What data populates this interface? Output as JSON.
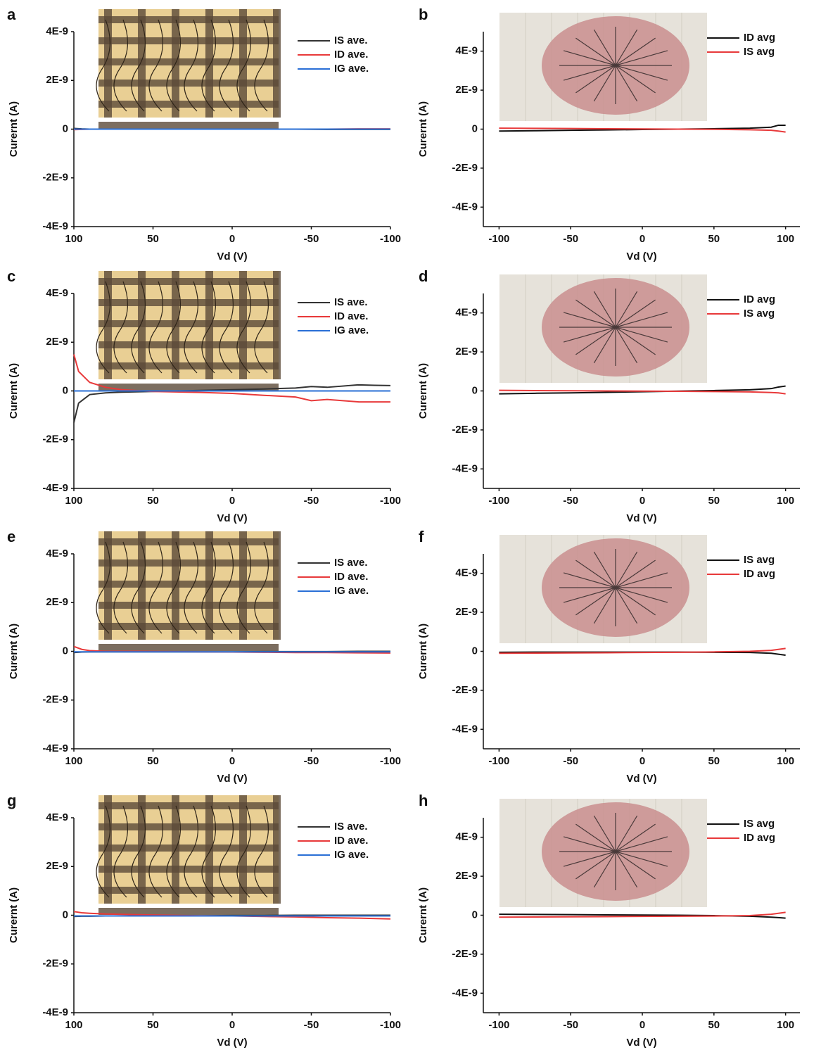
{
  "chart_data": [
    {
      "type": "line",
      "panel": "a",
      "xlabel": "Vd (V)",
      "ylabel": "Curernt (A)",
      "legend": "upper right",
      "xlim": [
        100,
        -100
      ],
      "xticks": [
        100,
        50,
        0,
        -50,
        -100
      ],
      "ylim": [
        -4e-09,
        4e-09
      ],
      "yticks": [
        {
          "value": 4e-09,
          "label": "4E-9"
        },
        {
          "value": 2e-09,
          "label": "2E-9"
        },
        0,
        {
          "value": -2e-09,
          "label": "-2E-9"
        },
        {
          "value": -4e-09,
          "label": "-4E-9"
        }
      ],
      "x": [
        100,
        95,
        90,
        80,
        60,
        40,
        20,
        0,
        -20,
        -40,
        -60,
        -80,
        -100
      ],
      "series": [
        {
          "name": "IS ave.",
          "color": "#333333",
          "values": [
            3e-11,
            1e-11,
            0,
            0,
            0,
            0,
            0,
            0,
            0,
            0,
            -1e-11,
            -1e-11,
            -1e-11
          ]
        },
        {
          "name": "ID ave.",
          "color": "#e8393a",
          "values": [
            -2e-11,
            -1e-11,
            0,
            0,
            0,
            0,
            0,
            0,
            0,
            0,
            0,
            1e-11,
            1e-11
          ]
        },
        {
          "name": "IG ave.",
          "color": "#2a6fd6",
          "values": [
            0,
            0,
            0,
            0,
            0,
            0,
            0,
            0,
            0,
            0,
            0,
            0,
            0
          ]
        }
      ]
    },
    {
      "type": "line",
      "panel": "b",
      "xlabel": "Vd (V)",
      "ylabel": "Curernt (A)",
      "legend": "upper right",
      "xlim": [
        -111,
        110
      ],
      "xticks": [
        -100,
        -50,
        0,
        50,
        100
      ],
      "ylim": [
        -5e-09,
        5e-09
      ],
      "yticks": [
        {
          "value": 4e-09,
          "label": "4E-9"
        },
        {
          "value": 2e-09,
          "label": "2E-9"
        },
        0,
        {
          "value": -2e-09,
          "label": "-2E-9"
        },
        {
          "value": -4e-09,
          "label": "-4E-9"
        }
      ],
      "x": [
        -100,
        -75,
        -50,
        -25,
        0,
        25,
        50,
        75,
        90,
        95,
        100
      ],
      "series": [
        {
          "name": "ID avg",
          "color": "#111111",
          "values": [
            -1e-10,
            -8e-11,
            -6e-11,
            -4e-11,
            -2e-11,
            0,
            2e-11,
            5e-11,
            1e-10,
            2e-10,
            2e-10
          ]
        },
        {
          "name": "IS avg",
          "color": "#e8393a",
          "values": [
            5e-11,
            4e-11,
            3e-11,
            2e-11,
            1e-11,
            0,
            -1e-11,
            -3e-11,
            -6e-11,
            -1e-10,
            -1.5e-10
          ]
        }
      ]
    },
    {
      "type": "line",
      "panel": "c",
      "xlabel": "Vd (V)",
      "ylabel": "Curernt (A)",
      "legend": "upper right",
      "xlim": [
        100,
        -100
      ],
      "xticks": [
        100,
        50,
        0,
        -50,
        -100
      ],
      "ylim": [
        -4e-09,
        4e-09
      ],
      "yticks": [
        {
          "value": 4e-09,
          "label": "4E-9"
        },
        {
          "value": 2e-09,
          "label": "2E-9"
        },
        0,
        {
          "value": -2e-09,
          "label": "-2E-9"
        },
        {
          "value": -4e-09,
          "label": "-4E-9"
        }
      ],
      "x": [
        100,
        97,
        90,
        80,
        70,
        50,
        20,
        0,
        -20,
        -40,
        -50,
        -60,
        -80,
        -90,
        -100
      ],
      "series": [
        {
          "name": "IS ave.",
          "color": "#333333",
          "values": [
            -1.3e-09,
            -5e-10,
            -1.5e-10,
            -8e-11,
            -5e-11,
            -2e-11,
            2e-11,
            5e-11,
            8e-11,
            1.2e-10,
            1.8e-10,
            1.5e-10,
            2.5e-10,
            2.3e-10,
            2.2e-10
          ]
        },
        {
          "name": "ID ave.",
          "color": "#e8393a",
          "values": [
            1.5e-09,
            8e-10,
            3.5e-10,
            1.5e-10,
            5e-11,
            -2e-11,
            -6e-11,
            -1e-10,
            -1.8e-10,
            -2.5e-10,
            -4e-10,
            -3.5e-10,
            -4.5e-10,
            -4.5e-10,
            -4.5e-10
          ]
        },
        {
          "name": "IG ave.",
          "color": "#2a6fd6",
          "values": [
            0,
            0,
            0,
            0,
            0,
            0,
            0,
            0,
            0,
            0,
            0,
            0,
            0,
            0,
            0
          ]
        }
      ]
    },
    {
      "type": "line",
      "panel": "d",
      "xlabel": "Vd (V)",
      "ylabel": "Curernt (A)",
      "legend": "upper right",
      "xlim": [
        -111,
        110
      ],
      "xticks": [
        -100,
        -50,
        0,
        50,
        100
      ],
      "ylim": [
        -5e-09,
        5e-09
      ],
      "yticks": [
        {
          "value": 4e-09,
          "label": "4E-9"
        },
        {
          "value": 2e-09,
          "label": "2E-9"
        },
        0,
        {
          "value": -2e-09,
          "label": "-2E-9"
        },
        {
          "value": -4e-09,
          "label": "-4E-9"
        }
      ],
      "x": [
        -100,
        -75,
        -50,
        -25,
        0,
        25,
        50,
        75,
        90,
        95,
        100
      ],
      "series": [
        {
          "name": "ID avg",
          "color": "#111111",
          "values": [
            -1.5e-10,
            -1.2e-10,
            -1e-10,
            -7e-11,
            -4e-11,
            -1e-11,
            2e-11,
            6e-11,
            1.2e-10,
            2e-10,
            2.5e-10
          ]
        },
        {
          "name": "IS avg",
          "color": "#e8393a",
          "values": [
            3e-11,
            2e-11,
            1e-11,
            0,
            -1e-11,
            -2e-11,
            -3e-11,
            -5e-11,
            -8e-11,
            -1e-10,
            -1.5e-10
          ]
        }
      ]
    },
    {
      "type": "line",
      "panel": "e",
      "xlabel": "Vd (V)",
      "ylabel": "Curernt (A)",
      "legend": "upper right",
      "xlim": [
        100,
        -100
      ],
      "xticks": [
        100,
        50,
        0,
        -50,
        -100
      ],
      "ylim": [
        -4e-09,
        4e-09
      ],
      "yticks": [
        {
          "value": 4e-09,
          "label": "4E-9"
        },
        {
          "value": 2e-09,
          "label": "2E-9"
        },
        0,
        {
          "value": -2e-09,
          "label": "-2E-9"
        },
        {
          "value": -4e-09,
          "label": "-4E-9"
        }
      ],
      "x": [
        100,
        95,
        90,
        80,
        60,
        40,
        20,
        0,
        -20,
        -40,
        -60,
        -80,
        -100
      ],
      "series": [
        {
          "name": "IS ave.",
          "color": "#333333",
          "values": [
            -5e-11,
            -3e-11,
            -2e-11,
            -2e-11,
            -2e-11,
            -2e-11,
            -2e-11,
            -2e-11,
            -1e-11,
            -1e-11,
            -1e-11,
            0,
            0
          ]
        },
        {
          "name": "ID ave.",
          "color": "#e8393a",
          "values": [
            2e-10,
            8e-11,
            3e-11,
            0,
            0,
            -1e-11,
            -2e-11,
            -3e-11,
            -4e-11,
            -5e-11,
            -5e-11,
            -6e-11,
            -7e-11
          ]
        },
        {
          "name": "IG ave.",
          "color": "#2a6fd6",
          "values": [
            -2e-11,
            -2e-11,
            -2e-11,
            -2e-11,
            -2e-11,
            -2e-11,
            -2e-11,
            -2e-11,
            -2e-11,
            -2e-11,
            -2e-11,
            -2e-11,
            -2e-11
          ]
        }
      ]
    },
    {
      "type": "line",
      "panel": "f",
      "xlabel": "Vd (V)",
      "ylabel": "Curernt (A)",
      "legend": "upper right",
      "xlim": [
        -111,
        110
      ],
      "xticks": [
        -100,
        -50,
        0,
        50,
        100
      ],
      "ylim": [
        -5e-09,
        5e-09
      ],
      "yticks": [
        {
          "value": 4e-09,
          "label": "4E-9"
        },
        {
          "value": 2e-09,
          "label": "2E-9"
        },
        0,
        {
          "value": -2e-09,
          "label": "-2E-9"
        },
        {
          "value": -4e-09,
          "label": "-4E-9"
        }
      ],
      "x": [
        -100,
        -75,
        -50,
        -25,
        0,
        25,
        50,
        75,
        90,
        95,
        100
      ],
      "series": [
        {
          "name": "IS avg",
          "color": "#111111",
          "values": [
            -5e-11,
            -4e-11,
            -4e-11,
            -4e-11,
            -4e-11,
            -4e-11,
            -5e-11,
            -6e-11,
            -1e-10,
            -1.5e-10,
            -2e-10
          ]
        },
        {
          "name": "ID avg",
          "color": "#e8393a",
          "values": [
            -1e-10,
            -9e-11,
            -8e-11,
            -7e-11,
            -6e-11,
            -5e-11,
            -3e-11,
            0,
            5e-11,
            1e-10,
            1.5e-10
          ]
        }
      ]
    },
    {
      "type": "line",
      "panel": "g",
      "xlabel": "Vd (V)",
      "ylabel": "Curernt (A)",
      "legend": "upper right",
      "xlim": [
        100,
        -100
      ],
      "xticks": [
        100,
        50,
        0,
        -50,
        -100
      ],
      "ylim": [
        -4e-09,
        4e-09
      ],
      "yticks": [
        {
          "value": 4e-09,
          "label": "4E-9"
        },
        {
          "value": 2e-09,
          "label": "2E-9"
        },
        0,
        {
          "value": -2e-09,
          "label": "-2E-9"
        },
        {
          "value": -4e-09,
          "label": "-4E-9"
        }
      ],
      "x": [
        100,
        95,
        90,
        80,
        60,
        40,
        20,
        0,
        -20,
        -40,
        -60,
        -80,
        -100
      ],
      "series": [
        {
          "name": "IS ave.",
          "color": "#333333",
          "values": [
            -5e-11,
            -4e-11,
            -4e-11,
            -3e-11,
            -3e-11,
            -2e-11,
            -2e-11,
            -1e-11,
            -1e-11,
            0,
            0,
            0,
            0
          ]
        },
        {
          "name": "ID ave.",
          "color": "#e8393a",
          "values": [
            1.5e-10,
            1e-10,
            8e-11,
            5e-11,
            2e-11,
            0,
            -2e-11,
            -3e-11,
            -5e-11,
            -7e-11,
            -1e-10,
            -1.2e-10,
            -1.5e-10
          ]
        },
        {
          "name": "IG ave.",
          "color": "#2a6fd6",
          "values": [
            -3e-11,
            -3e-11,
            -3e-11,
            -3e-11,
            -3e-11,
            -3e-11,
            -3e-11,
            -3e-11,
            -3e-11,
            -3e-11,
            -3e-11,
            -3e-11,
            -3e-11
          ]
        }
      ]
    },
    {
      "type": "line",
      "panel": "h",
      "xlabel": "Vd (V)",
      "ylabel": "Curernt (A)",
      "legend": "upper right",
      "xlim": [
        -111,
        110
      ],
      "xticks": [
        -100,
        -50,
        0,
        50,
        100
      ],
      "ylim": [
        -5e-09,
        5e-09
      ],
      "yticks": [
        {
          "value": 4e-09,
          "label": "4E-9"
        },
        {
          "value": 2e-09,
          "label": "2E-9"
        },
        0,
        {
          "value": -2e-09,
          "label": "-2E-9"
        },
        {
          "value": -4e-09,
          "label": "-4E-9"
        }
      ],
      "x": [
        -100,
        -75,
        -50,
        -25,
        0,
        25,
        50,
        75,
        90,
        95,
        100
      ],
      "series": [
        {
          "name": "IS avg",
          "color": "#111111",
          "values": [
            5e-11,
            4e-11,
            3e-11,
            2e-11,
            1e-11,
            0,
            -2e-11,
            -5e-11,
            -1e-10,
            -1.2e-10,
            -1.5e-10
          ]
        },
        {
          "name": "ID avg",
          "color": "#e8393a",
          "values": [
            -1e-10,
            -9e-11,
            -8e-11,
            -7e-11,
            -6e-11,
            -5e-11,
            -4e-11,
            -2e-11,
            5e-11,
            1e-10,
            1.5e-10
          ]
        }
      ]
    }
  ]
}
